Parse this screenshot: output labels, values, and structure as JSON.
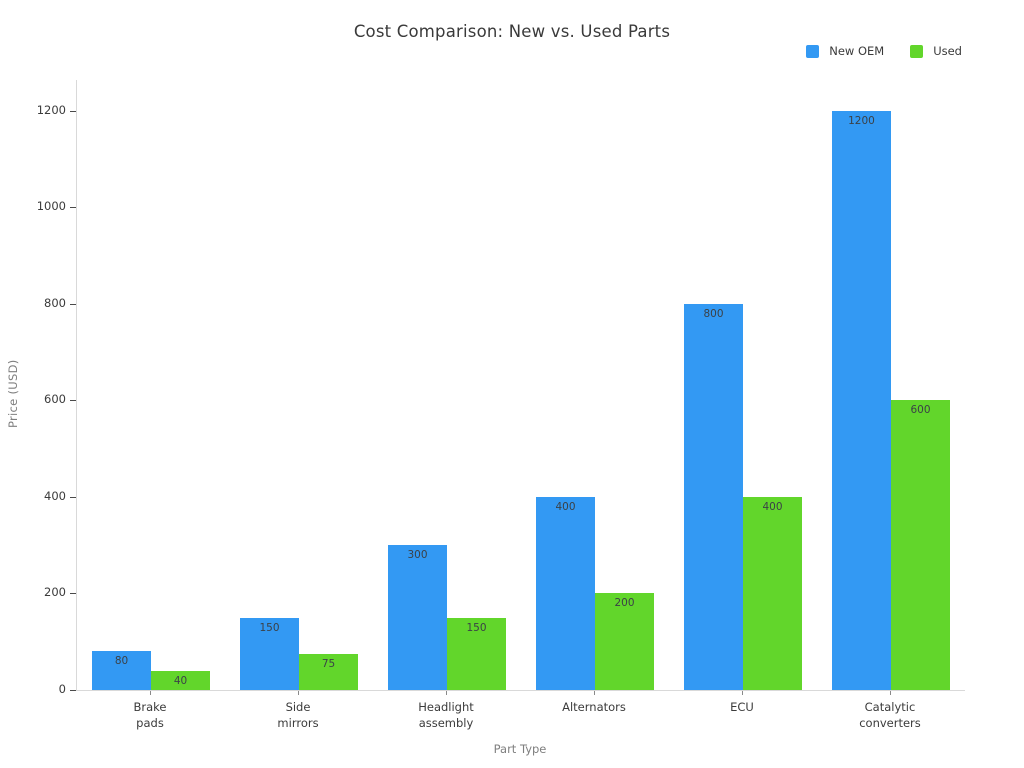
{
  "chart_data": {
    "type": "bar",
    "title": "Cost Comparison: New vs. Used Parts",
    "xlabel": "Part Type",
    "ylabel": "Price (USD)",
    "categories": [
      "Brake\npads",
      "Side\nmirrors",
      "Headlight\nassembly",
      "Alternators",
      "ECU",
      "Catalytic\nconverters"
    ],
    "series": [
      {
        "name": "New OEM",
        "color": "#3399f3",
        "values": [
          80,
          150,
          300,
          400,
          800,
          1200
        ]
      },
      {
        "name": "Used",
        "color": "#62d62b",
        "values": [
          40,
          75,
          150,
          200,
          400,
          600
        ]
      }
    ],
    "yticks": [
      0,
      200,
      400,
      600,
      800,
      1000,
      1200
    ],
    "ylim": [
      0,
      1264
    ],
    "bar_value_labels": true,
    "legend_position": "top-right",
    "grid": false
  }
}
